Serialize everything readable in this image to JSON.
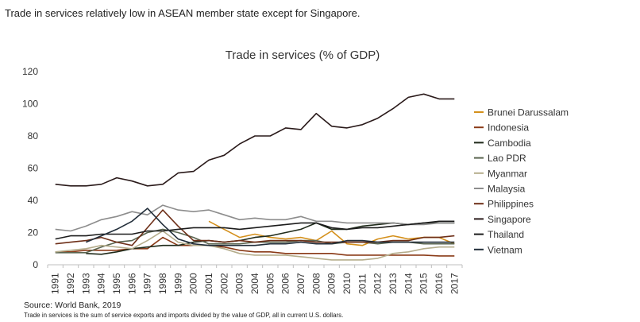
{
  "headline": "Trade in services relatively low in ASEAN member state except for Singapore.",
  "source": "Source: World Bank, 2019",
  "note": "Trade in services is the sum of service exports and imports divided by the value of GDP, all in current U.S. dollars.",
  "chart_data": {
    "type": "line",
    "title": "Trade in services (% of GDP)",
    "xlabel": "",
    "ylabel": "",
    "ylim": [
      0,
      120
    ],
    "yticks": [
      0,
      20,
      40,
      60,
      80,
      100,
      120
    ],
    "grid": false,
    "legend": "right",
    "x": [
      "1991",
      "1992",
      "1993",
      "1994",
      "1995",
      "1996",
      "1997",
      "1998",
      "1999",
      "2000",
      "2001",
      "2002",
      "2003",
      "2004",
      "2005",
      "2006",
      "2007",
      "2008",
      "2009",
      "2010",
      "2011",
      "2012",
      "2013",
      "2014",
      "2015",
      "2016",
      "2017"
    ],
    "series": [
      {
        "name": "Brunei Darussalam",
        "color": "#d4901c",
        "values": [
          null,
          null,
          null,
          null,
          null,
          null,
          null,
          null,
          null,
          null,
          27,
          22,
          17,
          19,
          17,
          16,
          17,
          15,
          21,
          13,
          12,
          16,
          18,
          16,
          17,
          17,
          13
        ]
      },
      {
        "name": "Indonesia",
        "color": "#8a3a17",
        "values": [
          8,
          8,
          9,
          9,
          9,
          10,
          10,
          17,
          12,
          12,
          12,
          11,
          9,
          8,
          8,
          7,
          7,
          7,
          7,
          6,
          6,
          6,
          6,
          6,
          6,
          5.5,
          5.5
        ]
      },
      {
        "name": "Cambodia",
        "color": "#1f2a1a",
        "values": [
          null,
          null,
          7,
          6.5,
          8,
          10,
          11,
          12,
          12,
          14,
          15,
          14,
          15,
          17,
          18,
          20,
          22,
          26,
          22,
          22,
          24,
          25,
          26,
          25,
          26,
          26,
          26
        ]
      },
      {
        "name": "Lao PDR",
        "color": "#5a6550",
        "values": [
          7.5,
          7.5,
          7.5,
          11,
          14,
          15,
          20,
          22,
          20,
          17,
          13,
          13,
          13,
          14,
          14,
          14,
          15,
          15,
          13,
          14,
          14,
          13,
          14,
          14,
          13,
          13,
          13
        ]
      },
      {
        "name": "Myanmar",
        "color": "#b5ad8c",
        "values": [
          8,
          9,
          10,
          12,
          11,
          10,
          15,
          21,
          14,
          12,
          12,
          10,
          7,
          6,
          6,
          6,
          5,
          4,
          3,
          3,
          3,
          4,
          7,
          8,
          10,
          11,
          11
        ]
      },
      {
        "name": "Malaysia",
        "color": "#8d8d8d",
        "values": [
          22,
          21,
          24,
          28,
          30,
          33,
          31,
          37,
          34,
          33,
          34,
          31,
          28,
          29,
          28,
          28,
          30,
          27,
          27,
          26,
          26,
          26,
          26,
          25,
          25,
          26,
          26
        ]
      },
      {
        "name": "Philippines",
        "color": "#6e2f18",
        "values": [
          13,
          14,
          15,
          17,
          14,
          12,
          23,
          34,
          24,
          15,
          15,
          14,
          15,
          14,
          15,
          15,
          15,
          14,
          14,
          14,
          14,
          14,
          15,
          15,
          17,
          17,
          18
        ]
      },
      {
        "name": "Singapore",
        "color": "#2a1a1a",
        "values": [
          50,
          49,
          49,
          50,
          54,
          52,
          49,
          50,
          57,
          58,
          65,
          68,
          75,
          80,
          80,
          85,
          84,
          94,
          86,
          85,
          87,
          91,
          97,
          104,
          106,
          103,
          103
        ]
      },
      {
        "name": "Thailand",
        "color": "#1c1c1c",
        "values": [
          16,
          18,
          18,
          19,
          19,
          19,
          21,
          21,
          22,
          23,
          23,
          23,
          22,
          23,
          24,
          25,
          26,
          26,
          23,
          22,
          23,
          23,
          24,
          25,
          26,
          27,
          27
        ]
      },
      {
        "name": "Vietnam",
        "color": "#222e3a",
        "values": [
          null,
          null,
          14,
          18,
          22,
          27,
          35,
          25,
          16,
          13,
          12,
          12,
          12,
          12,
          13,
          13,
          14,
          13,
          13,
          15,
          15,
          14,
          14,
          14,
          14,
          14,
          14
        ]
      }
    ]
  }
}
